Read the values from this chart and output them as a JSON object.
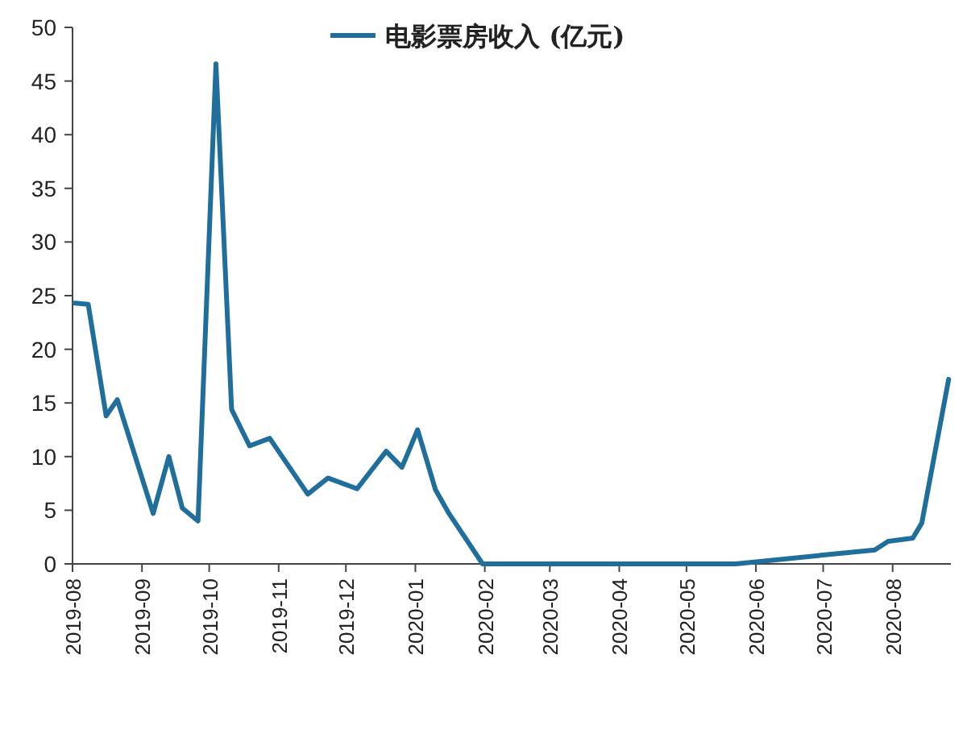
{
  "chart_data": {
    "type": "line",
    "legend": "top",
    "marker": "none",
    "line_style": "solid",
    "x": [
      "2019-08-02",
      "2019-08-08",
      "2019-08-16",
      "2019-08-21",
      "2019-09-06",
      "2019-09-13",
      "2019-09-19",
      "2019-09-26",
      "2019-10-04",
      "2019-10-11",
      "2019-10-19",
      "2019-10-28",
      "2019-11-14",
      "2019-11-23",
      "2019-12-06",
      "2019-12-19",
      "2019-12-26",
      "2020-01-02",
      "2020-01-10",
      "2020-01-16",
      "2020-01-31",
      "2020-02-07",
      "2020-05-23",
      "2020-06-30",
      "2020-07-24",
      "2020-07-30",
      "2020-08-10",
      "2020-08-14",
      "2020-08-26"
    ],
    "series": [
      {
        "name": "电影票房收入 (亿元)",
        "color": "#1f6e9c",
        "values": [
          24.3,
          24.2,
          13.8,
          15.3,
          4.7,
          10,
          5.2,
          4,
          46.6,
          14.4,
          11,
          11.7,
          6.5,
          8,
          7,
          10.5,
          9,
          12.5,
          6.9,
          4.7,
          0,
          0,
          0,
          0.8,
          1.3,
          2.1,
          2.4,
          3.8,
          17.2
        ]
      }
    ],
    "xlim": [
      "2019-08-01",
      "2020-08-27"
    ],
    "xticks": [
      "2019-08",
      "2019-09",
      "2019-10",
      "2019-11",
      "2019-12",
      "2020-01",
      "2020-02",
      "2020-03",
      "2020-04",
      "2020-05",
      "2020-06",
      "2020-07",
      "2020-08"
    ],
    "ylim": [
      0,
      50
    ],
    "yticks": [
      0,
      5,
      10,
      15,
      20,
      25,
      30,
      35,
      40,
      45,
      50
    ]
  }
}
